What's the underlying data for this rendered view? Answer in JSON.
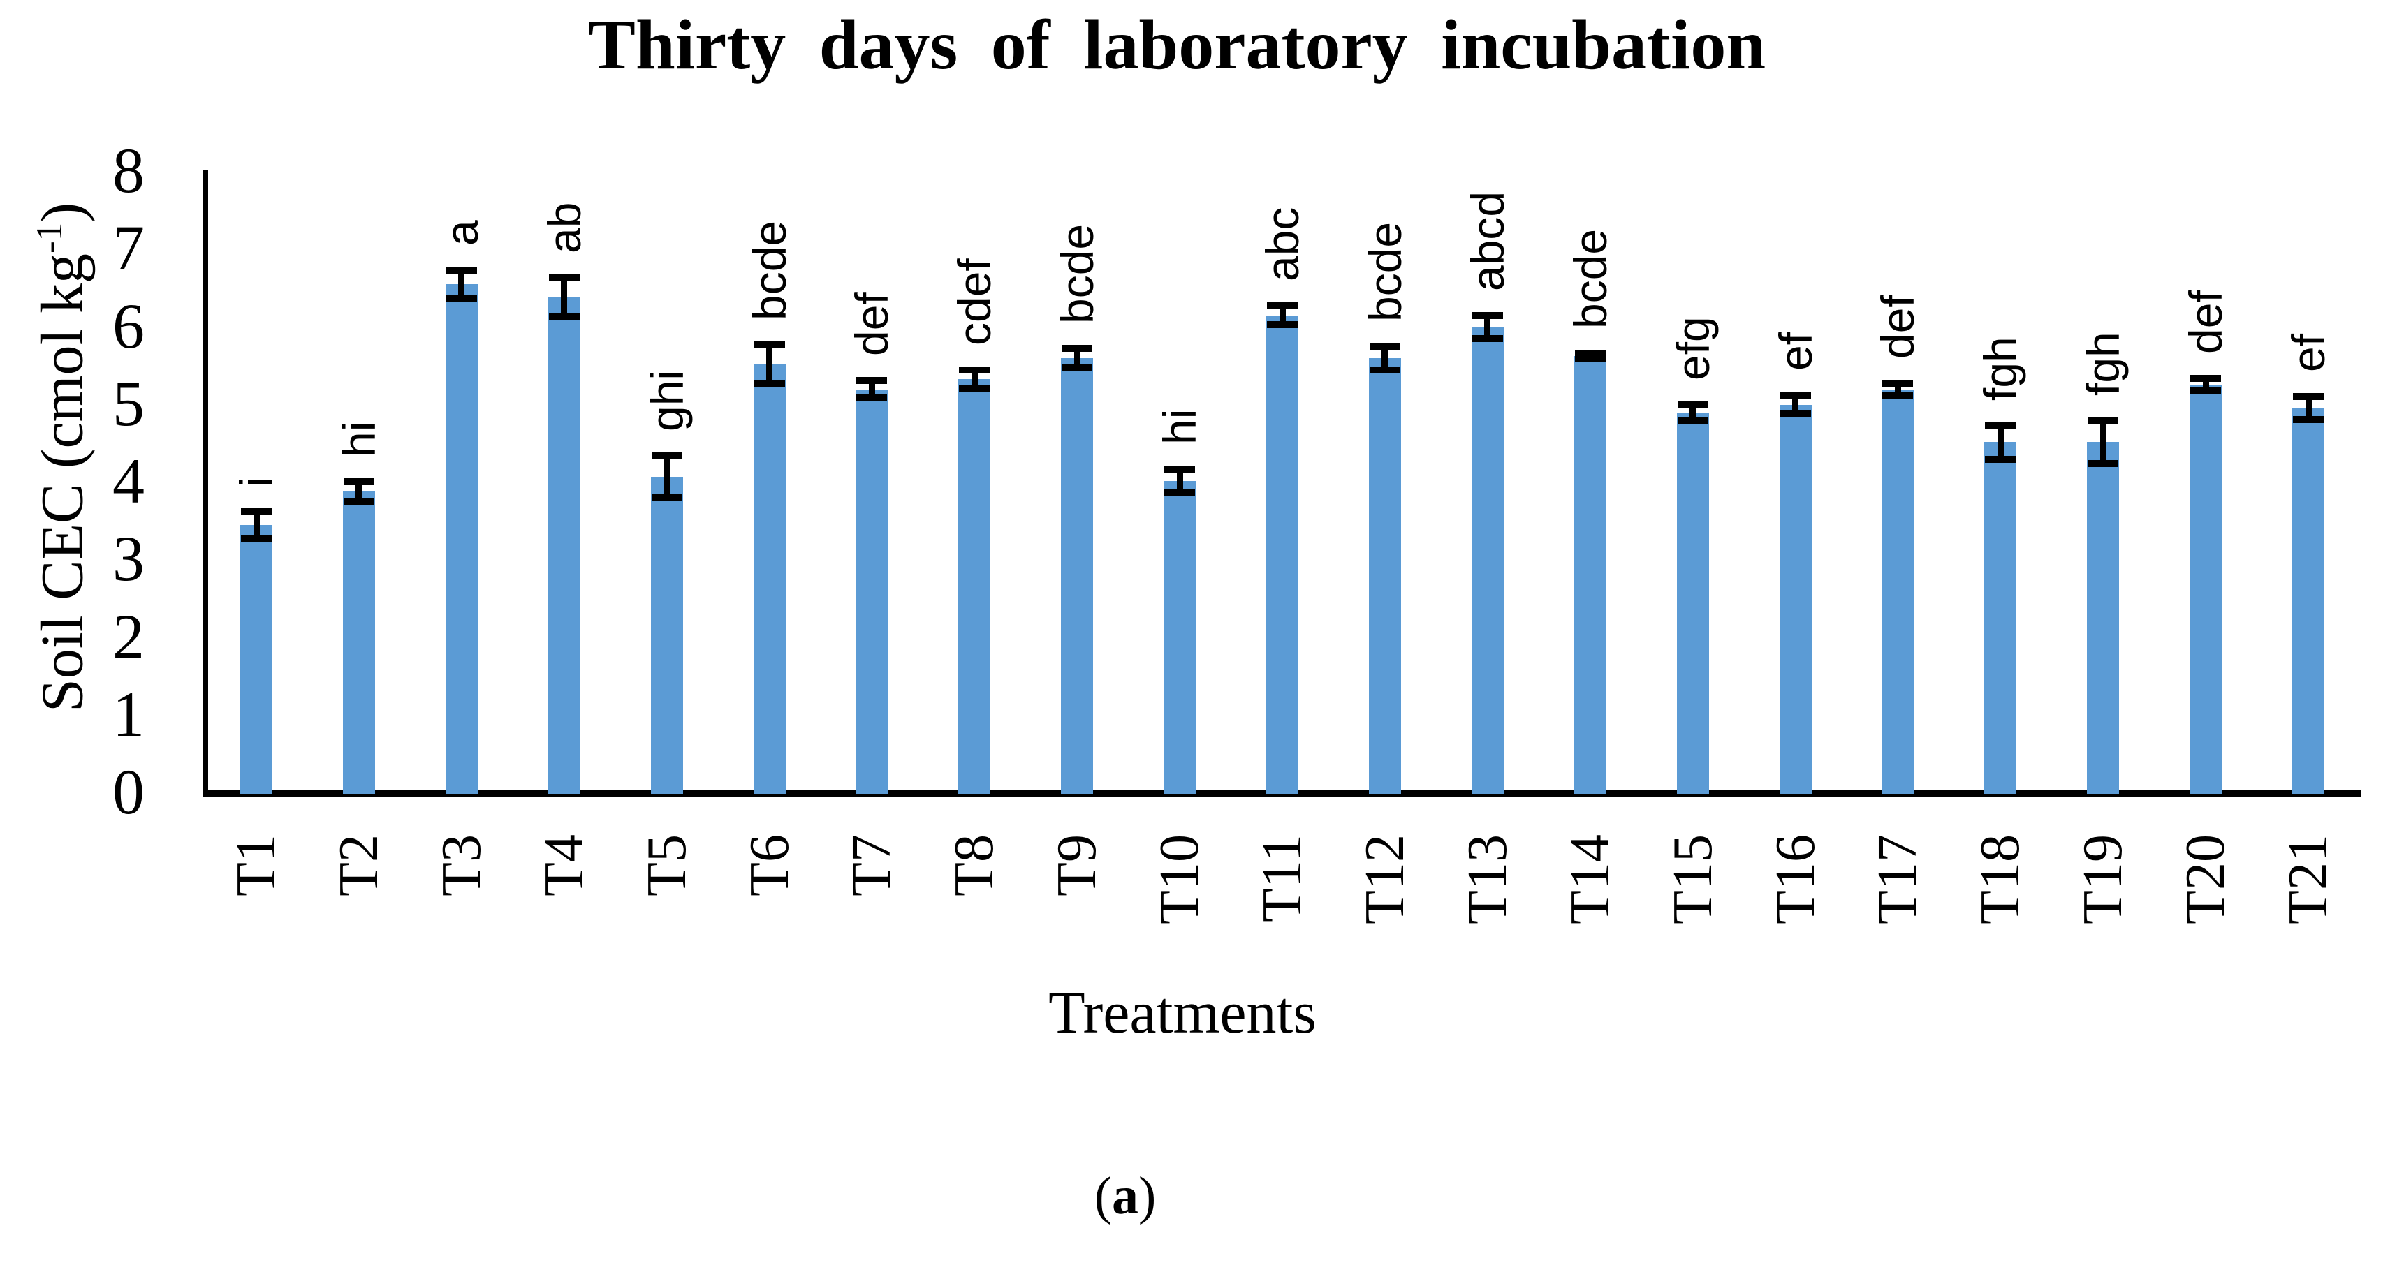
{
  "title": "Thirty days of laboratory incubation",
  "caption": {
    "open": "(",
    "letter": "a",
    "close": ")"
  },
  "chart_data": {
    "type": "bar",
    "title": "Thirty days of laboratory incubation",
    "xlabel": "Treatments",
    "ylabel": "Soil CEC (cmol kg-1)",
    "ylabel_parts": {
      "main": "Soil CEC (cmol kg",
      "sup": "-1",
      "close": ")"
    },
    "ylim": [
      0,
      8
    ],
    "yticks": [
      0,
      1,
      2,
      3,
      4,
      5,
      6,
      7,
      8
    ],
    "grid": false,
    "legend_position": "none",
    "bar_color": "#5B9BD5",
    "error_bar_color": "#000000",
    "categories": [
      "T1",
      "T2",
      "T3",
      "T4",
      "T5",
      "T6",
      "T7",
      "T8",
      "T9",
      "T10",
      "T11",
      "T12",
      "T13",
      "T14",
      "T15",
      "T16",
      "T17",
      "T18",
      "T19",
      "T20",
      "T21"
    ],
    "values": [
      3.45,
      3.88,
      6.55,
      6.38,
      4.07,
      5.52,
      5.2,
      5.33,
      5.6,
      4.02,
      6.15,
      5.6,
      6.0,
      5.63,
      4.9,
      5.0,
      5.2,
      4.52,
      4.52,
      5.26,
      4.96
    ],
    "errors": [
      0.17,
      0.13,
      0.18,
      0.25,
      0.27,
      0.25,
      0.11,
      0.12,
      0.13,
      0.15,
      0.12,
      0.15,
      0.15,
      0.03,
      0.1,
      0.12,
      0.08,
      0.22,
      0.28,
      0.08,
      0.15
    ],
    "sig_letters": [
      "i",
      "hi",
      "a",
      "ab",
      "ghi",
      "bcde",
      "def",
      "cdef",
      "bcde",
      "hi",
      "abc",
      "bcde",
      "abcd",
      "bcde",
      "efg",
      "ef",
      "def",
      "fgh",
      "fgh",
      "def",
      "ef"
    ]
  }
}
